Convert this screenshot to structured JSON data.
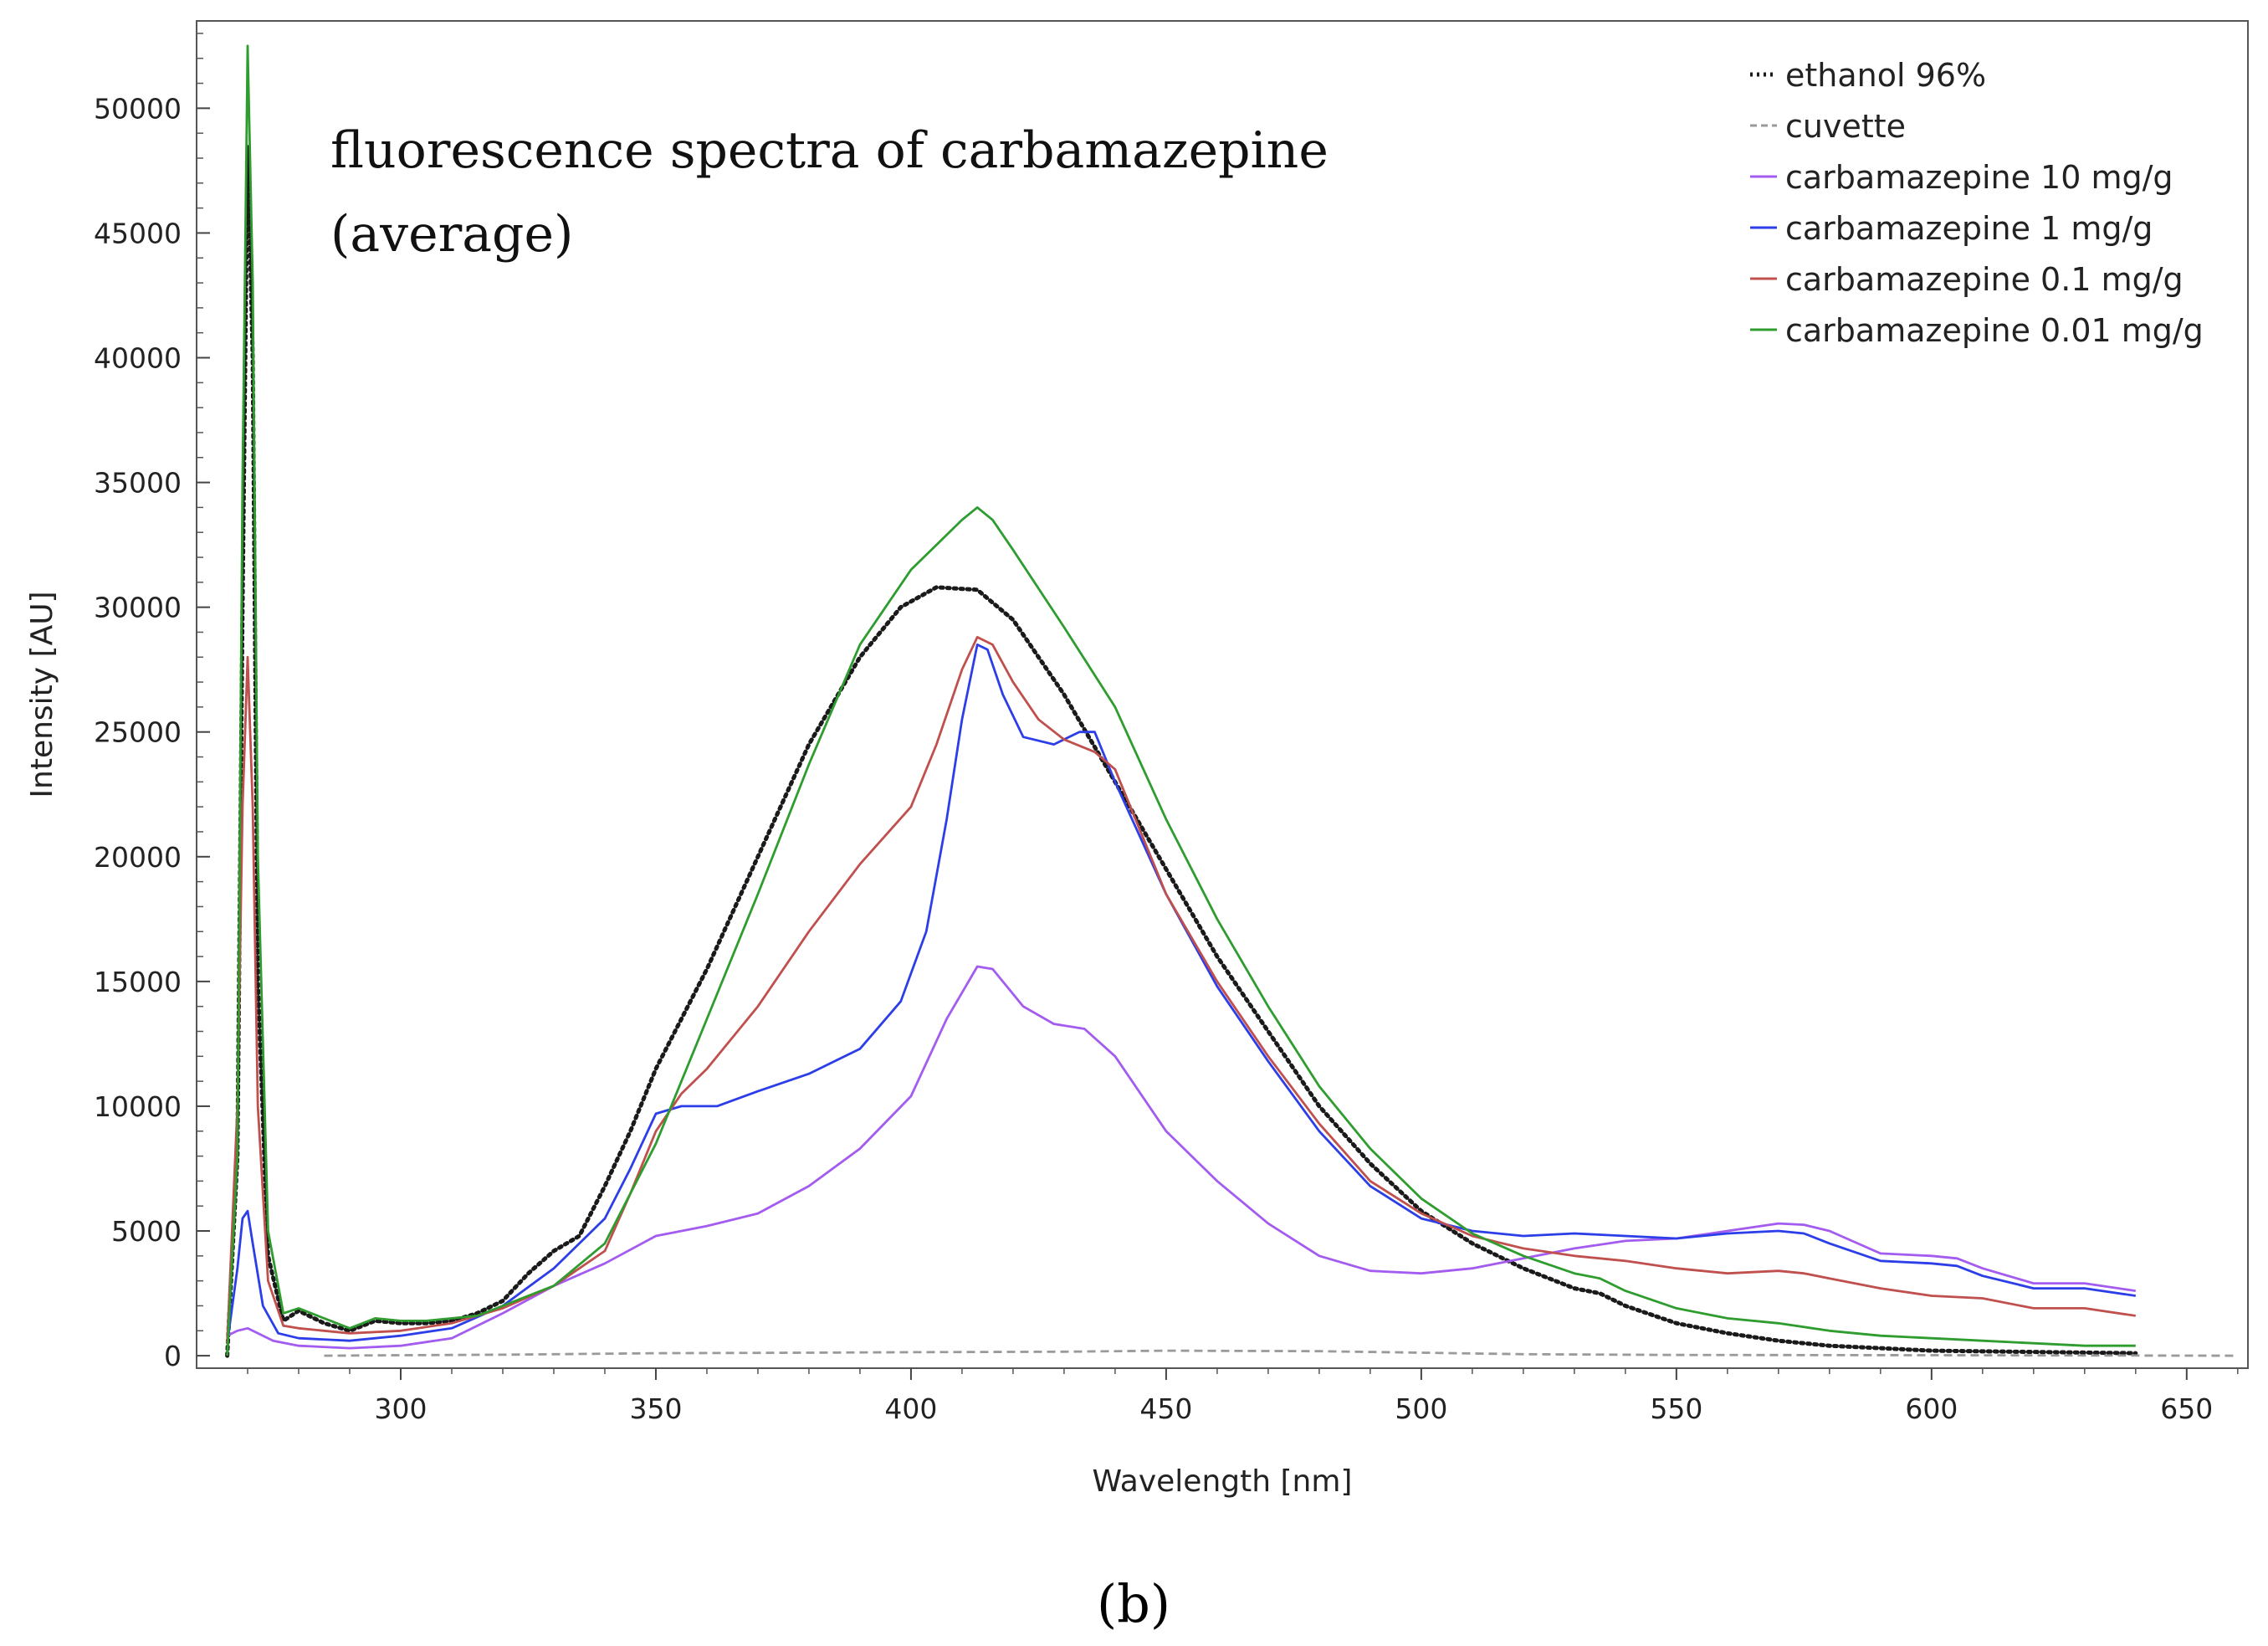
{
  "chart_data": {
    "type": "line",
    "title_lines": [
      "fluorescence spectra of carbamazepine",
      "(average)"
    ],
    "xlabel": "Wavelength [nm]",
    "ylabel": "Intensity [AU]",
    "xlim": [
      260,
      662
    ],
    "ylim": [
      -500,
      53500
    ],
    "x_ticks": [
      300,
      350,
      400,
      450,
      500,
      550,
      600,
      650
    ],
    "x_tick_labels": [
      "300",
      "350",
      "400",
      "450",
      "500",
      "550",
      "600",
      "650"
    ],
    "y_ticks": [
      0,
      5000,
      10000,
      15000,
      20000,
      25000,
      30000,
      35000,
      40000,
      45000,
      50000
    ],
    "y_tick_labels": [
      "0",
      "5000",
      "10000",
      "15000",
      "20000",
      "25000",
      "30000",
      "35000",
      "40000",
      "45000",
      "50000"
    ],
    "legend_position": "top-right",
    "panel_label": "(b)",
    "series": [
      {
        "name": "ethanol 96%",
        "color": "#1a1a1a",
        "dash": "dotted",
        "points": [
          [
            266,
            0
          ],
          [
            268,
            8000
          ],
          [
            269,
            30000
          ],
          [
            270,
            48500
          ],
          [
            271,
            40000
          ],
          [
            272,
            15000
          ],
          [
            274,
            4000
          ],
          [
            277,
            1400
          ],
          [
            280,
            1800
          ],
          [
            285,
            1300
          ],
          [
            290,
            1000
          ],
          [
            295,
            1400
          ],
          [
            300,
            1300
          ],
          [
            305,
            1300
          ],
          [
            310,
            1400
          ],
          [
            315,
            1700
          ],
          [
            320,
            2200
          ],
          [
            325,
            3300
          ],
          [
            330,
            4200
          ],
          [
            335,
            4800
          ],
          [
            340,
            6800
          ],
          [
            345,
            9000
          ],
          [
            350,
            11500
          ],
          [
            360,
            15500
          ],
          [
            370,
            20000
          ],
          [
            380,
            24500
          ],
          [
            390,
            28000
          ],
          [
            398,
            30000
          ],
          [
            405,
            30800
          ],
          [
            413,
            30700
          ],
          [
            420,
            29500
          ],
          [
            430,
            26500
          ],
          [
            440,
            23000
          ],
          [
            450,
            19500
          ],
          [
            460,
            16000
          ],
          [
            470,
            13000
          ],
          [
            480,
            10000
          ],
          [
            490,
            7700
          ],
          [
            500,
            5800
          ],
          [
            510,
            4500
          ],
          [
            520,
            3500
          ],
          [
            530,
            2700
          ],
          [
            535,
            2500
          ],
          [
            540,
            2000
          ],
          [
            550,
            1300
          ],
          [
            560,
            900
          ],
          [
            570,
            600
          ],
          [
            580,
            400
          ],
          [
            590,
            300
          ],
          [
            600,
            200
          ],
          [
            620,
            150
          ],
          [
            640,
            100
          ]
        ]
      },
      {
        "name": "cuvette",
        "color": "#9a9a9a",
        "dash": "dashed",
        "points": [
          [
            285,
            0
          ],
          [
            300,
            20
          ],
          [
            320,
            40
          ],
          [
            350,
            100
          ],
          [
            380,
            120
          ],
          [
            400,
            140
          ],
          [
            430,
            160
          ],
          [
            450,
            200
          ],
          [
            480,
            180
          ],
          [
            500,
            120
          ],
          [
            520,
            60
          ],
          [
            550,
            30
          ],
          [
            600,
            20
          ],
          [
            660,
            0
          ]
        ]
      },
      {
        "name": "carbamazepine 10 mg/g",
        "color": "#a35bf0",
        "dash": "solid",
        "points": [
          [
            266,
            800
          ],
          [
            268,
            1000
          ],
          [
            270,
            1100
          ],
          [
            272,
            900
          ],
          [
            275,
            600
          ],
          [
            280,
            400
          ],
          [
            290,
            300
          ],
          [
            300,
            400
          ],
          [
            310,
            700
          ],
          [
            320,
            1700
          ],
          [
            330,
            2800
          ],
          [
            340,
            3700
          ],
          [
            350,
            4800
          ],
          [
            360,
            5200
          ],
          [
            370,
            5700
          ],
          [
            380,
            6800
          ],
          [
            390,
            8300
          ],
          [
            400,
            10400
          ],
          [
            407,
            13500
          ],
          [
            413,
            15600
          ],
          [
            416,
            15500
          ],
          [
            422,
            14000
          ],
          [
            428,
            13300
          ],
          [
            434,
            13100
          ],
          [
            440,
            12000
          ],
          [
            450,
            9000
          ],
          [
            460,
            7000
          ],
          [
            470,
            5300
          ],
          [
            480,
            4000
          ],
          [
            490,
            3400
          ],
          [
            500,
            3300
          ],
          [
            510,
            3500
          ],
          [
            520,
            3900
          ],
          [
            530,
            4300
          ],
          [
            540,
            4600
          ],
          [
            550,
            4700
          ],
          [
            560,
            5000
          ],
          [
            570,
            5300
          ],
          [
            575,
            5250
          ],
          [
            580,
            5000
          ],
          [
            590,
            4100
          ],
          [
            600,
            4000
          ],
          [
            605,
            3900
          ],
          [
            610,
            3500
          ],
          [
            620,
            2900
          ],
          [
            630,
            2900
          ],
          [
            640,
            2600
          ]
        ]
      },
      {
        "name": "carbamazepine 1 mg/g",
        "color": "#2c3ee8",
        "dash": "solid",
        "points": [
          [
            266,
            500
          ],
          [
            268,
            3500
          ],
          [
            269,
            5500
          ],
          [
            270,
            5800
          ],
          [
            271,
            4500
          ],
          [
            273,
            2000
          ],
          [
            276,
            900
          ],
          [
            280,
            700
          ],
          [
            290,
            600
          ],
          [
            300,
            800
          ],
          [
            310,
            1100
          ],
          [
            320,
            2000
          ],
          [
            330,
            3500
          ],
          [
            340,
            5500
          ],
          [
            345,
            7500
          ],
          [
            350,
            9700
          ],
          [
            355,
            10000
          ],
          [
            362,
            10000
          ],
          [
            370,
            10600
          ],
          [
            380,
            11300
          ],
          [
            390,
            12300
          ],
          [
            398,
            14200
          ],
          [
            403,
            17000
          ],
          [
            407,
            21500
          ],
          [
            410,
            25500
          ],
          [
            413,
            28500
          ],
          [
            415,
            28300
          ],
          [
            418,
            26500
          ],
          [
            422,
            24800
          ],
          [
            428,
            24500
          ],
          [
            433,
            25000
          ],
          [
            436,
            25000
          ],
          [
            440,
            23000
          ],
          [
            450,
            18500
          ],
          [
            460,
            14800
          ],
          [
            470,
            11800
          ],
          [
            480,
            9000
          ],
          [
            490,
            6800
          ],
          [
            500,
            5500
          ],
          [
            510,
            5000
          ],
          [
            520,
            4800
          ],
          [
            530,
            4900
          ],
          [
            540,
            4800
          ],
          [
            550,
            4700
          ],
          [
            560,
            4900
          ],
          [
            570,
            5000
          ],
          [
            575,
            4900
          ],
          [
            580,
            4500
          ],
          [
            590,
            3800
          ],
          [
            600,
            3700
          ],
          [
            605,
            3600
          ],
          [
            610,
            3200
          ],
          [
            620,
            2700
          ],
          [
            630,
            2700
          ],
          [
            640,
            2400
          ]
        ]
      },
      {
        "name": "carbamazepine 0.1 mg/g",
        "color": "#c0504d",
        "dash": "solid",
        "points": [
          [
            266,
            500
          ],
          [
            268,
            10000
          ],
          [
            269,
            22000
          ],
          [
            270,
            28000
          ],
          [
            271,
            22000
          ],
          [
            272,
            10000
          ],
          [
            274,
            3000
          ],
          [
            277,
            1200
          ],
          [
            280,
            1100
          ],
          [
            290,
            900
          ],
          [
            300,
            1000
          ],
          [
            310,
            1300
          ],
          [
            320,
            1900
          ],
          [
            330,
            2800
          ],
          [
            340,
            4200
          ],
          [
            345,
            6500
          ],
          [
            350,
            9000
          ],
          [
            355,
            10500
          ],
          [
            360,
            11500
          ],
          [
            370,
            14000
          ],
          [
            380,
            17000
          ],
          [
            390,
            19700
          ],
          [
            400,
            22000
          ],
          [
            405,
            24500
          ],
          [
            410,
            27500
          ],
          [
            413,
            28800
          ],
          [
            416,
            28500
          ],
          [
            420,
            27000
          ],
          [
            425,
            25500
          ],
          [
            430,
            24700
          ],
          [
            436,
            24200
          ],
          [
            440,
            23500
          ],
          [
            450,
            18500
          ],
          [
            460,
            15000
          ],
          [
            470,
            12000
          ],
          [
            480,
            9300
          ],
          [
            490,
            7000
          ],
          [
            500,
            5700
          ],
          [
            510,
            4800
          ],
          [
            520,
            4300
          ],
          [
            530,
            4000
          ],
          [
            540,
            3800
          ],
          [
            550,
            3500
          ],
          [
            560,
            3300
          ],
          [
            570,
            3400
          ],
          [
            575,
            3300
          ],
          [
            580,
            3100
          ],
          [
            590,
            2700
          ],
          [
            600,
            2400
          ],
          [
            610,
            2300
          ],
          [
            620,
            1900
          ],
          [
            630,
            1900
          ],
          [
            640,
            1600
          ]
        ]
      },
      {
        "name": "carbamazepine 0.01 mg/g",
        "color": "#2e9c2e",
        "dash": "solid",
        "points": [
          [
            266,
            0
          ],
          [
            268,
            8000
          ],
          [
            269,
            35000
          ],
          [
            270,
            52500
          ],
          [
            271,
            43000
          ],
          [
            272,
            20000
          ],
          [
            274,
            5000
          ],
          [
            277,
            1700
          ],
          [
            280,
            1900
          ],
          [
            285,
            1500
          ],
          [
            290,
            1100
          ],
          [
            295,
            1500
          ],
          [
            300,
            1400
          ],
          [
            305,
            1400
          ],
          [
            310,
            1500
          ],
          [
            315,
            1600
          ],
          [
            320,
            2000
          ],
          [
            330,
            2800
          ],
          [
            340,
            4500
          ],
          [
            350,
            8500
          ],
          [
            360,
            13500
          ],
          [
            370,
            18500
          ],
          [
            380,
            23700
          ],
          [
            390,
            28500
          ],
          [
            400,
            31500
          ],
          [
            405,
            32500
          ],
          [
            410,
            33500
          ],
          [
            413,
            34000
          ],
          [
            416,
            33500
          ],
          [
            420,
            32300
          ],
          [
            430,
            29200
          ],
          [
            440,
            26000
          ],
          [
            450,
            21500
          ],
          [
            460,
            17500
          ],
          [
            470,
            14000
          ],
          [
            480,
            10800
          ],
          [
            490,
            8300
          ],
          [
            500,
            6300
          ],
          [
            510,
            4900
          ],
          [
            520,
            4000
          ],
          [
            530,
            3300
          ],
          [
            535,
            3100
          ],
          [
            540,
            2600
          ],
          [
            550,
            1900
          ],
          [
            560,
            1500
          ],
          [
            570,
            1300
          ],
          [
            580,
            1000
          ],
          [
            590,
            800
          ],
          [
            600,
            700
          ],
          [
            610,
            600
          ],
          [
            620,
            500
          ],
          [
            630,
            400
          ],
          [
            640,
            400
          ]
        ]
      }
    ]
  }
}
